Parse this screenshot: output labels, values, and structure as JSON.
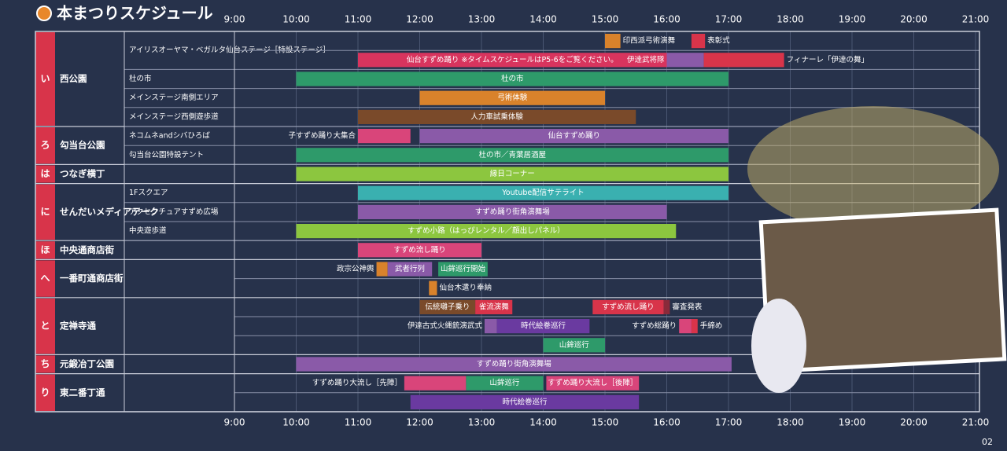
{
  "header": {
    "title": "本まつりスケジュール"
  },
  "times": [
    "9:00",
    "10:00",
    "11:00",
    "12:00",
    "13:00",
    "14:00",
    "15:00",
    "16:00",
    "17:00",
    "18:00",
    "19:00",
    "20:00",
    "21:00"
  ],
  "page_number": "02",
  "areas": [
    {
      "letter": "い",
      "name": "西公園",
      "venues": [
        {
          "name": "アイリスオーヤマ・ベガルタ仙台ステージ［特設ステージ］",
          "rows": [
            [
              {
                "label": "印西派弓術演舞",
                "start": 15.0,
                "end": 15.25,
                "color": "#d9822b"
              },
              {
                "label": "表彰式",
                "start": 16.4,
                "end": 16.62,
                "color": "#d8344a"
              }
            ],
            [
              {
                "label": "仙台すずめ踊り ※タイムスケジュールはP5-6をご覧ください。",
                "start": 11.0,
                "end": 16.0,
                "color": "#d8345e"
              },
              {
                "label": "伊達武将隊",
                "start": 16.0,
                "end": 16.6,
                "color": "#8a5aa8"
              },
              {
                "label": "フィナーレ「伊達の舞」",
                "start": 16.6,
                "end": 17.9,
                "color": "#d8344a"
              }
            ]
          ]
        },
        {
          "name": "杜の市",
          "rows": [
            [
              {
                "label": "杜の市",
                "start": 10.0,
                "end": 17.0,
                "color": "#2e9a6a"
              }
            ]
          ]
        },
        {
          "name": "メインステージ南側エリア",
          "rows": [
            [
              {
                "label": "弓術体験",
                "start": 12.0,
                "end": 15.0,
                "color": "#d9822b"
              }
            ]
          ]
        },
        {
          "name": "メインステージ西側遊歩道",
          "rows": [
            [
              {
                "label": "人力車試乗体験",
                "start": 11.0,
                "end": 15.5,
                "color": "#7a4a2a"
              }
            ]
          ]
        }
      ]
    },
    {
      "letter": "ろ",
      "name": "勾当台公園",
      "venues": [
        {
          "name": "ネコムネandシバひろば",
          "rows": [
            [
              {
                "label": "子すずめ踊り大集合",
                "start": 11.0,
                "end": 11.85,
                "color": "#d9457a"
              },
              {
                "label": "仙台すずめ踊り",
                "start": 12.0,
                "end": 17.0,
                "color": "#8a5aa8"
              }
            ]
          ]
        },
        {
          "name": "勾当台公園特設テント",
          "rows": [
            [
              {
                "label": "杜の市／青葉居酒屋",
                "start": 10.0,
                "end": 17.0,
                "color": "#2e9a6a"
              }
            ]
          ]
        }
      ]
    },
    {
      "letter": "は",
      "name": "つなぎ横丁",
      "venues": [
        {
          "rows": [
            [
              {
                "label": "縁日コーナー",
                "start": 10.0,
                "end": 17.0,
                "color": "#8cc63f"
              }
            ]
          ]
        }
      ]
    },
    {
      "letter": "に",
      "name": "せんだいメディアテーク",
      "venues": [
        {
          "name": "1Fスクエア",
          "rows": [
            [
              {
                "label": "Youtube配信サテライト",
                "start": 11.0,
                "end": 17.0,
                "color": "#3ab0b0"
              }
            ]
          ]
        },
        {
          "name": "アクセンチュアすずめ広場",
          "rows": [
            [
              {
                "label": "すずめ踊り街角演舞場",
                "start": 11.0,
                "end": 16.0,
                "color": "#8a5aa8"
              }
            ]
          ]
        },
        {
          "name": "中央遊歩道",
          "rows": [
            [
              {
                "label": "すずめ小路（はっぴレンタル／顔出しパネル）",
                "start": 10.0,
                "end": 16.15,
                "color": "#8cc63f"
              }
            ]
          ]
        }
      ]
    },
    {
      "letter": "ほ",
      "name": "中央通商店街",
      "venues": [
        {
          "rows": [
            [
              {
                "label": "すずめ流し踊り",
                "start": 11.0,
                "end": 13.0,
                "color": "#d9457a"
              }
            ]
          ]
        }
      ]
    },
    {
      "letter": "へ",
      "name": "一番町通商店街",
      "venues": [
        {
          "rows": [
            [
              {
                "label": "政宗公神輿",
                "start": 11.3,
                "end": 11.48,
                "color": "#d9822b"
              },
              {
                "label": "武者行列",
                "start": 11.48,
                "end": 12.2,
                "color": "#8a5aa8"
              },
              {
                "label": "山鉾巡行開始",
                "start": 12.3,
                "end": 13.1,
                "color": "#2e9a6a"
              }
            ],
            [
              {
                "label": "仙台木遣り奉納",
                "start": 12.15,
                "end": 12.28,
                "color": "#d9822b"
              }
            ]
          ]
        }
      ]
    },
    {
      "letter": "と",
      "name": "定禅寺通",
      "venues": [
        {
          "rows": [
            [
              {
                "label": "伝統囃子乗り",
                "start": 12.0,
                "end": 12.9,
                "color": "#7a4a2a"
              },
              {
                "label": "雀流演舞",
                "start": 12.9,
                "end": 13.5,
                "color": "#d8344a"
              },
              {
                "label": "すずめ流し踊り",
                "start": 14.8,
                "end": 15.95,
                "color": "#d8344a"
              },
              {
                "label": "審査発表",
                "start": 15.95,
                "end": 16.05,
                "color": "#8a2a3a"
              }
            ],
            [
              {
                "label": "伊達古式火縄銃演武式",
                "start": 13.05,
                "end": 13.25,
                "color": "#8a5aa8"
              },
              {
                "label": "時代絵巻巡行",
                "start": 13.25,
                "end": 14.75,
                "color": "#6a3aa0"
              },
              {
                "label": "すずめ総踊り",
                "start": 16.2,
                "end": 16.4,
                "color": "#d9457a"
              },
              {
                "label": "手締め",
                "start": 16.4,
                "end": 16.5,
                "color": "#d8344a"
              }
            ],
            [
              {
                "label": "山鉾巡行",
                "start": 14.0,
                "end": 15.0,
                "color": "#2e9a6a"
              }
            ]
          ]
        }
      ]
    },
    {
      "letter": "ち",
      "name": "元鍛冶丁公園",
      "venues": [
        {
          "rows": [
            [
              {
                "label": "すずめ踊り街角演舞場",
                "start": 10.0,
                "end": 17.05,
                "color": "#8a5aa8"
              }
            ]
          ]
        }
      ]
    },
    {
      "letter": "り",
      "name": "東二番丁通",
      "venues": [
        {
          "rows": [
            [
              {
                "label": "すずめ踊り大流し［先陣］",
                "start": 11.75,
                "end": 12.75,
                "color": "#d9457a"
              },
              {
                "label": "山鉾巡行",
                "start": 12.75,
                "end": 14.0,
                "color": "#2e9a6a"
              },
              {
                "label": "すずめ踊り大流し［後陣］",
                "start": 14.05,
                "end": 15.55,
                "color": "#d9457a"
              }
            ],
            [
              {
                "label": "時代絵巻巡行",
                "start": 11.85,
                "end": 15.55,
                "color": "#6a3aa0"
              }
            ]
          ]
        }
      ]
    }
  ]
}
